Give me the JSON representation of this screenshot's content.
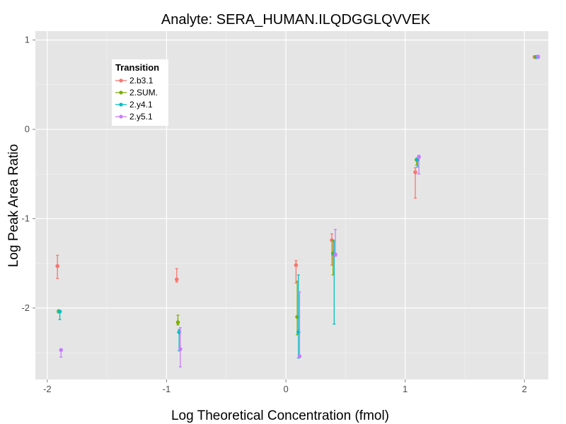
{
  "chart_data": {
    "type": "scatter",
    "title": "Analyte: SERA_HUMAN.ILQDGGLQVVEK",
    "xlabel": "Log Theoretical Concentration (fmol)",
    "ylabel": "Log Peak Area Ratio",
    "xlim": [
      -2.1,
      2.2
    ],
    "ylim": [
      -2.8,
      1.1
    ],
    "x_ticks": [
      -2,
      -1,
      0,
      1,
      2
    ],
    "x_tick_labels": [
      "-2",
      "-1",
      "0",
      "1",
      "2"
    ],
    "y_ticks": [
      1,
      0,
      -1,
      -2
    ],
    "y_tick_labels": [
      "1",
      "0",
      "-1",
      "-2"
    ],
    "legend": {
      "title": "Transition",
      "position": "top-left"
    },
    "series": [
      {
        "name": "2.b3.1",
        "color": "#F8766D",
        "points": [
          {
            "x": -1.9,
            "y": -1.53,
            "lo": -1.67,
            "hi": -1.41
          },
          {
            "x": -0.9,
            "y": -1.68,
            "lo": -1.71,
            "hi": -1.56
          },
          {
            "x": 0.1,
            "y": -1.52,
            "lo": -1.72,
            "hi": -1.47
          },
          {
            "x": 0.4,
            "y": -1.24,
            "lo": -1.52,
            "hi": -1.17
          },
          {
            "x": 1.1,
            "y": -0.48,
            "lo": -0.77,
            "hi": -0.43
          },
          {
            "x": 2.1,
            "y": 0.81,
            "lo": 0.8,
            "hi": 0.82
          }
        ]
      },
      {
        "name": "2.SUM.",
        "color": "#7CAE00",
        "points": [
          {
            "x": -1.9,
            "y": -2.04,
            "lo": -2.05,
            "hi": -2.02
          },
          {
            "x": -0.9,
            "y": -2.16,
            "lo": -2.19,
            "hi": -2.08
          },
          {
            "x": 0.1,
            "y": -2.1,
            "lo": -2.3,
            "hi": -1.7
          },
          {
            "x": 0.4,
            "y": -1.39,
            "lo": -1.63,
            "hi": -1.24
          },
          {
            "x": 1.1,
            "y": -0.34,
            "lo": -0.4,
            "hi": -0.33
          },
          {
            "x": 2.1,
            "y": 0.81,
            "lo": 0.8,
            "hi": 0.82
          }
        ]
      },
      {
        "name": "2.y4.1",
        "color": "#00BFC4",
        "points": [
          {
            "x": -1.9,
            "y": -2.04,
            "lo": -2.13,
            "hi": -2.03
          },
          {
            "x": -0.9,
            "y": -2.27,
            "lo": -2.48,
            "hi": -2.24
          },
          {
            "x": 0.1,
            "y": -2.27,
            "lo": -2.56,
            "hi": -1.63
          },
          {
            "x": 0.4,
            "y": -1.4,
            "lo": -2.18,
            "hi": -1.25
          },
          {
            "x": 1.1,
            "y": -0.34,
            "lo": -0.42,
            "hi": -0.32
          },
          {
            "x": 2.1,
            "y": 0.81,
            "lo": 0.8,
            "hi": 0.82
          }
        ]
      },
      {
        "name": "2.y5.1",
        "color": "#C77CFF",
        "points": [
          {
            "x": -1.9,
            "y": -2.47,
            "lo": -2.55,
            "hi": -2.46
          },
          {
            "x": -0.9,
            "y": -2.46,
            "lo": -2.66,
            "hi": -2.22
          },
          {
            "x": 0.1,
            "y": -2.54,
            "lo": -2.55,
            "hi": -1.82
          },
          {
            "x": 0.4,
            "y": -1.4,
            "lo": -1.42,
            "hi": -1.12
          },
          {
            "x": 1.1,
            "y": -0.31,
            "lo": -0.5,
            "hi": -0.29
          },
          {
            "x": 2.1,
            "y": 0.81,
            "lo": 0.8,
            "hi": 0.83
          }
        ]
      }
    ]
  }
}
